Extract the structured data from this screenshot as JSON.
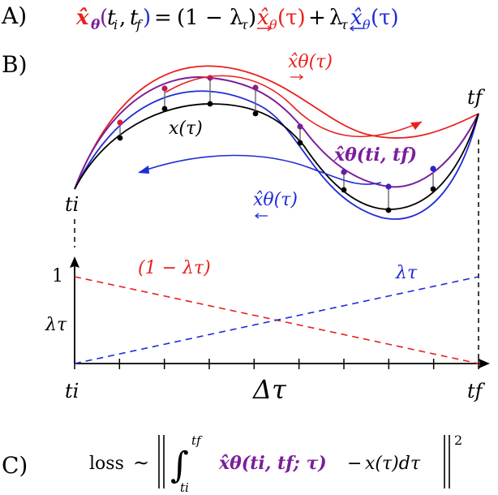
{
  "colors": {
    "forward": "#e8201c",
    "backward": "#1f2bd6",
    "combined": "#7a1f9a",
    "truth": "#000000",
    "connector": "#666666"
  },
  "panel_a": {
    "label": "A)",
    "lhs": "x̂θ(ti, tf)",
    "eq_sign": "=",
    "coef1": "(1 − λτ)",
    "term1": "x̂θ(τ)",
    "plus": "+",
    "coef2": "λτ",
    "term2": "x̂θ(τ)"
  },
  "panel_b": {
    "label": "B)",
    "forward_label": "x̂θ(τ)",
    "backward_label": "x̂θ(τ)",
    "combined_label": "x̂θ(ti, tf)",
    "truth_label": "x(τ)",
    "ti_label": "ti",
    "tf_label": "tf"
  },
  "weights_plot": {
    "y_tick_label": "1",
    "y_axis_label": "λτ",
    "decreasing_label": "(1 − λτ)",
    "increasing_label": "λτ",
    "x_start_label": "ti",
    "x_end_label": "tf",
    "x_axis_label": "Δτ",
    "tick_count": 9
  },
  "panel_c": {
    "label": "C)",
    "loss_word": "loss",
    "sim": "∼",
    "integral_upper": "tf",
    "integral_lower": "ti",
    "integrand_pred": "x̂θ(ti, tf; τ)",
    "minus": "−",
    "integrand_true": "x(τ)dτ",
    "exponent": "2"
  }
}
